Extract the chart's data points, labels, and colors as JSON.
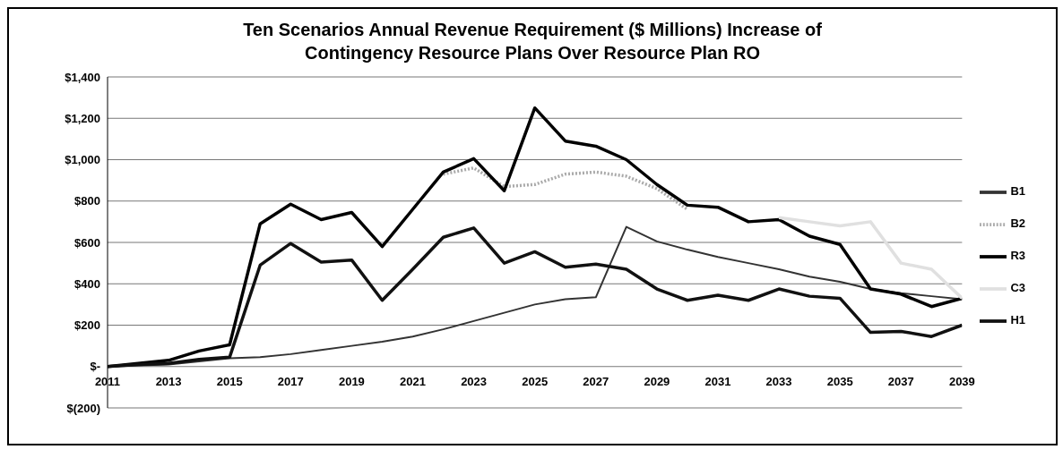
{
  "chart_data": {
    "type": "line",
    "title": "Ten Scenarios Annual Revenue Requirement ($ Millions) Increase of Contingency Resource Plans Over Resource Plan RO",
    "x": [
      2011,
      2012,
      2013,
      2014,
      2015,
      2016,
      2017,
      2018,
      2019,
      2020,
      2021,
      2022,
      2023,
      2024,
      2025,
      2026,
      2027,
      2028,
      2029,
      2030,
      2031,
      2032,
      2033,
      2034,
      2035,
      2036,
      2037,
      2038,
      2039
    ],
    "series": [
      {
        "name": "B1",
        "color": "#333333",
        "values": [
          0,
          5,
          10,
          25,
          40,
          45,
          60,
          80,
          100,
          120,
          145,
          180,
          220,
          260,
          300,
          325,
          335,
          675,
          605,
          565,
          530,
          500,
          470,
          435,
          410,
          375,
          355,
          340,
          325
        ]
      },
      {
        "name": "B2",
        "color": "#aaaaaa",
        "line_style": "dotted",
        "values": [
          null,
          null,
          null,
          null,
          null,
          null,
          null,
          null,
          null,
          null,
          null,
          930,
          960,
          870,
          880,
          930,
          940,
          920,
          860,
          760,
          null,
          null,
          null,
          null,
          null,
          null,
          null,
          null,
          null
        ]
      },
      {
        "name": "R3",
        "color": "#000000",
        "values": [
          0,
          15,
          30,
          75,
          105,
          690,
          785,
          710,
          745,
          580,
          760,
          940,
          1005,
          850,
          1250,
          1090,
          1065,
          1000,
          880,
          780,
          770,
          700,
          710,
          630,
          590,
          375,
          350,
          290,
          330
        ]
      },
      {
        "name": "C3",
        "color": "#e0e0e0",
        "values": [
          null,
          null,
          null,
          null,
          null,
          null,
          null,
          null,
          null,
          null,
          null,
          null,
          null,
          null,
          null,
          null,
          null,
          null,
          null,
          null,
          null,
          null,
          720,
          700,
          680,
          700,
          500,
          470,
          330
        ]
      },
      {
        "name": "H1",
        "color": "#111111",
        "values": [
          0,
          10,
          15,
          35,
          45,
          490,
          595,
          505,
          515,
          320,
          470,
          625,
          670,
          500,
          555,
          480,
          495,
          470,
          375,
          320,
          345,
          320,
          375,
          340,
          330,
          165,
          170,
          145,
          200
        ]
      }
    ],
    "xlim": [
      2011,
      2039
    ],
    "xticks": [
      2011,
      2013,
      2015,
      2017,
      2019,
      2021,
      2023,
      2025,
      2027,
      2029,
      2031,
      2033,
      2035,
      2037,
      2039
    ],
    "ylim": [
      -200,
      1400
    ],
    "yticks": [
      {
        "value": -200,
        "label": "$(200)"
      },
      {
        "value": 0,
        "label": "$-"
      },
      {
        "value": 200,
        "label": "$200"
      },
      {
        "value": 400,
        "label": "$400"
      },
      {
        "value": 600,
        "label": "$600"
      },
      {
        "value": 800,
        "label": "$800"
      },
      {
        "value": 1000,
        "label": "$1,000"
      },
      {
        "value": 1200,
        "label": "$1,200"
      },
      {
        "value": 1400,
        "label": "$1,400"
      }
    ],
    "grid": "y",
    "legend": "right",
    "marker": "none",
    "line_style": "solid"
  }
}
